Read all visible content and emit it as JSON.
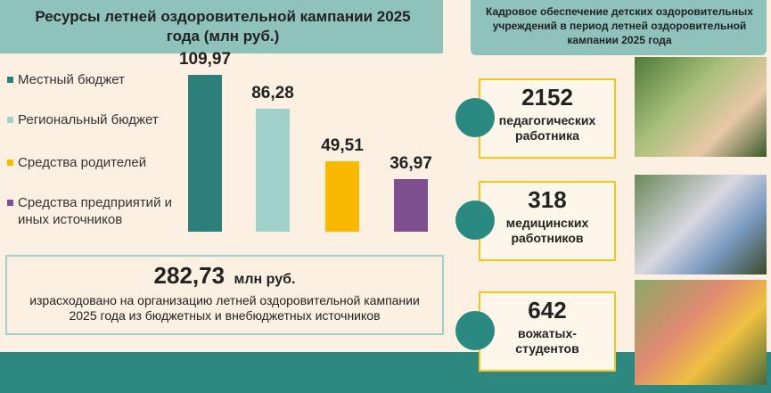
{
  "chart_data": {
    "type": "bar",
    "title": "Ресурсы летней оздоровительной кампании 2025 года (млн руб.)",
    "categories": [
      "Местный бюджет",
      "Региональный бюджет",
      "Средства родителей",
      "Средства предприятий и иных источников"
    ],
    "values": [
      109.97,
      86.28,
      49.51,
      36.97
    ],
    "value_labels": [
      "109,97",
      "86,28",
      "49,51",
      "36,97"
    ],
    "colors": [
      "#2e7f7b",
      "#9fd0c9",
      "#fbb800",
      "#7d4f8e"
    ]
  },
  "summary": {
    "amount": "282,73",
    "unit": "млн руб.",
    "text": "израсходовано на организацию летней оздоровительной кампании 2025 года из бюджетных и внебюджетных источников"
  },
  "staff": {
    "title": "Кадровое обеспечение детских оздоровительных учреждений в период летней оздоровительной кампании 2025 года",
    "items": [
      {
        "count": "2152",
        "label": "педагогических работника"
      },
      {
        "count": "318",
        "label": "медицинских работников"
      },
      {
        "count": "642",
        "label": "вожатых-студентов"
      }
    ]
  }
}
